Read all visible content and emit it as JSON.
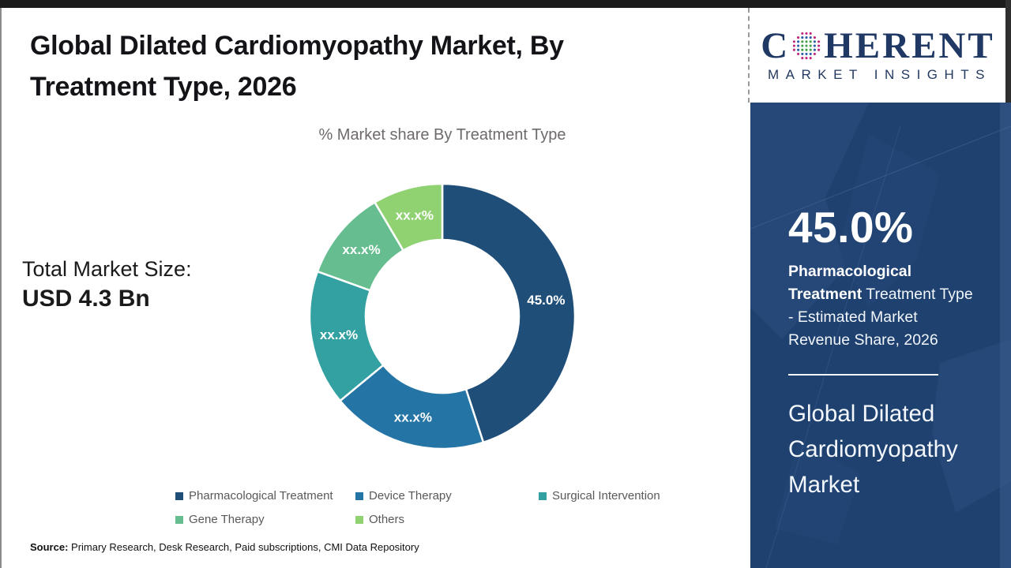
{
  "page": {
    "title": "Global Dilated Cardiomyopathy Market, By Treatment Type, 2026",
    "subtitle": "% Market share By Treatment Type",
    "total_market_label": "Total Market Size:",
    "total_market_value": "USD 4.3 Bn",
    "source_label": "Source:",
    "source_text": " Primary Research, Desk Research, Paid subscriptions, CMI Data Repository"
  },
  "logo": {
    "word_start": "C",
    "word_end": "HERENT",
    "subtitle": "MARKET INSIGHTS",
    "navy": "#1f3864",
    "globe_green": "#43a047",
    "globe_blue": "#2d5da8",
    "globe_magenta": "#c0267e"
  },
  "sidebar": {
    "headline_value": "45.0%",
    "headline_bold": "Pharmacological Treatment",
    "headline_rest": " Treatment Type - Estimated Market Revenue Share, 2026",
    "footer_title": "Global Dilated Cardiomyopathy Market",
    "background": "#1e4170"
  },
  "chart_data": {
    "type": "pie",
    "donut": true,
    "title": "% Market share By Treatment Type",
    "start_angle_deg": 0,
    "direction": "clockwise",
    "segments": [
      {
        "label": "Pharmacological Treatment",
        "display": "45.0%",
        "value": 45.0,
        "color": "#1f4e79"
      },
      {
        "label": "Device Therapy",
        "display": "xx.x%",
        "value": 19.0,
        "color": "#2475a5"
      },
      {
        "label": "Surgical Intervention",
        "display": "xx.x%",
        "value": 16.5,
        "color": "#33a1a1"
      },
      {
        "label": "Gene Therapy",
        "display": "xx.x%",
        "value": 11.0,
        "color": "#66be90"
      },
      {
        "label": "Others",
        "display": "xx.x%",
        "value": 8.5,
        "color": "#90d272"
      }
    ]
  }
}
